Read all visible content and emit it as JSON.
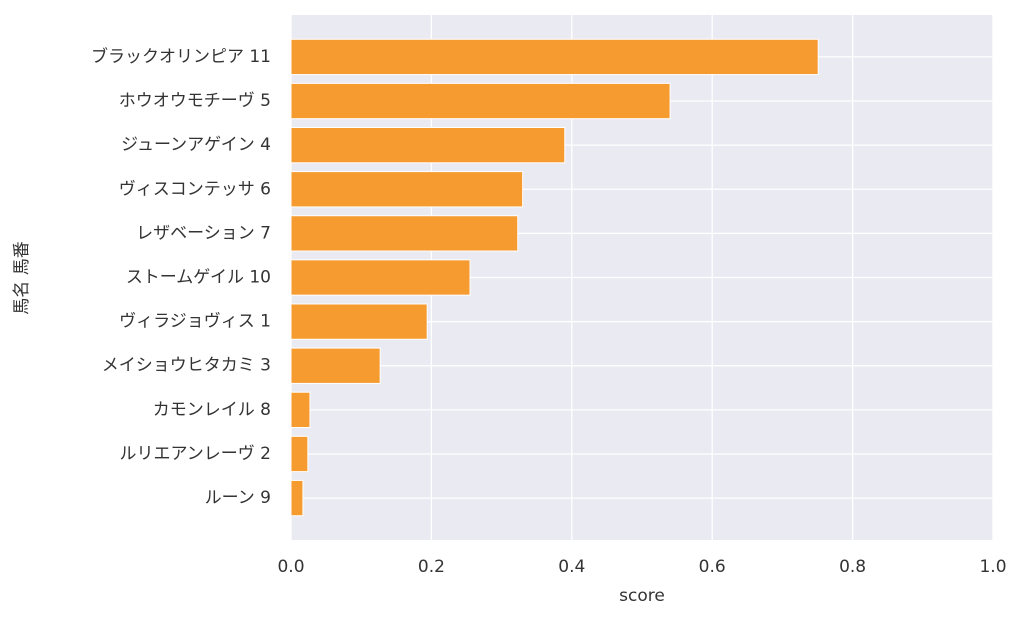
{
  "chart_data": {
    "type": "barh",
    "x_label": "score",
    "y_label": "馬名 馬番",
    "categories": [
      "ブラックオリンピア 11",
      "ホウオウモチーヴ 5",
      "ジューンアゲイン 4",
      "ヴィスコンテッサ 6",
      "レザベーション 7",
      "ストームゲイル 10",
      "ヴィラジョヴィス 1",
      "メイショウヒタカミ 3",
      "カモンレイル 8",
      "ルリエアンレーヴ 2",
      "ルーン 9"
    ],
    "values": [
      0.751,
      0.54,
      0.39,
      0.33,
      0.323,
      0.255,
      0.194,
      0.127,
      0.027,
      0.024,
      0.017
    ],
    "color": "#f59b30",
    "xlim": [
      0,
      1
    ],
    "xticks": [
      {
        "value": 0,
        "label": "0.0"
      },
      0.2,
      0.4,
      0.6,
      0.8,
      {
        "value": 1,
        "label": "1.0"
      }
    ],
    "grid": true
  }
}
